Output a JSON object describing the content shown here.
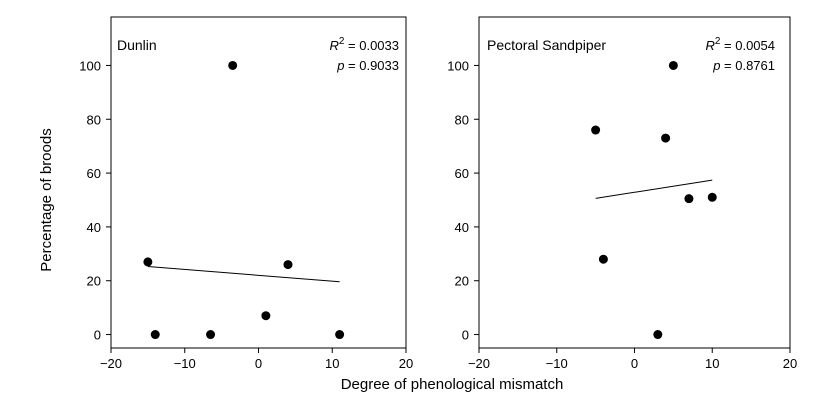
{
  "figure": {
    "xlabel": "Degree of phenological mismatch",
    "ylabel": "Percentage of broods"
  },
  "chart_data": [
    {
      "type": "scatter",
      "title": "Dunlin",
      "r2_label": "R",
      "r2_sup": "2",
      "r2_value": " = 0.0033",
      "p_label": "p",
      "p_value": " = 0.9033",
      "xlim": [
        -20,
        20
      ],
      "ylim": [
        -5,
        118
      ],
      "xticks": [
        -20,
        -10,
        0,
        10,
        20
      ],
      "yticks": [
        0,
        20,
        40,
        60,
        80,
        100
      ],
      "x": [
        -15,
        -14,
        -6.5,
        -3.5,
        1,
        4,
        11
      ],
      "y": [
        27,
        0,
        0,
        100,
        7,
        26,
        0
      ],
      "trend": [
        [
          -15,
          25.3
        ],
        [
          11,
          19.6
        ]
      ]
    },
    {
      "type": "scatter",
      "title": "Pectoral Sandpiper",
      "r2_label": "R",
      "r2_sup": "2",
      "r2_value": " = 0.0054",
      "p_label": "p",
      "p_value": " = 0.8761",
      "xlim": [
        -20,
        20
      ],
      "ylim": [
        -5,
        118
      ],
      "xticks": [
        -20,
        -10,
        0,
        10,
        20
      ],
      "yticks": [
        0,
        20,
        40,
        60,
        80,
        100
      ],
      "x": [
        -5,
        -4,
        3,
        4,
        5,
        7,
        10
      ],
      "y": [
        76,
        28,
        0,
        73,
        100,
        50.5,
        51
      ],
      "trend": [
        [
          -5,
          50.6
        ],
        [
          10,
          57.4
        ]
      ]
    }
  ]
}
